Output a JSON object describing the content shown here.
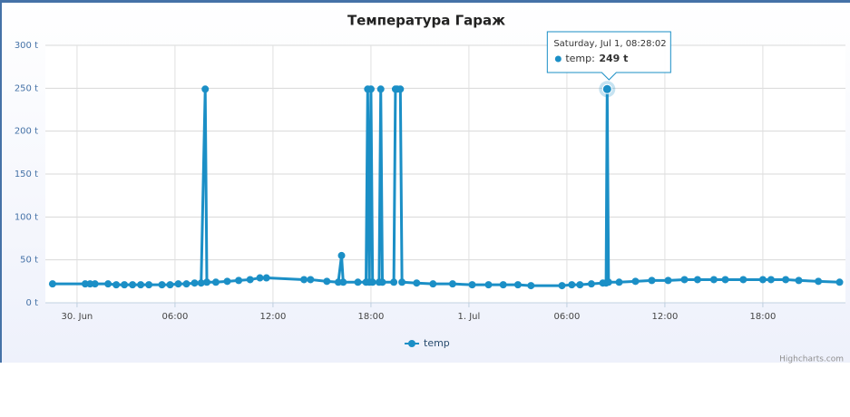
{
  "chart_data": {
    "type": "line",
    "title": "Температура Гараж",
    "x": [
      -1.5,
      0.5,
      0.8,
      1.1,
      1.9,
      2.4,
      2.9,
      3.4,
      3.9,
      4.4,
      5.2,
      5.7,
      6.2,
      6.7,
      7.2,
      7.6,
      7.85,
      7.95,
      8.5,
      9.2,
      9.9,
      10.6,
      11.2,
      11.6,
      13.9,
      14.3,
      15.3,
      16.0,
      16.2,
      16.3,
      17.2,
      17.7,
      17.8,
      17.9,
      18.0,
      18.1,
      18.5,
      18.6,
      18.7,
      19.4,
      19.5,
      19.6,
      19.8,
      19.9,
      20.8,
      21.8,
      23.0,
      24.2,
      25.2,
      26.1,
      27.0,
      27.8,
      29.7,
      30.3,
      30.8,
      31.5,
      32.2,
      32.4,
      32.467,
      32.55,
      33.2,
      34.2,
      35.2,
      36.2,
      37.2,
      38.0,
      39.0,
      39.7,
      40.8,
      42.0,
      42.5,
      43.4,
      44.2,
      45.4,
      46.7
    ],
    "series": [
      {
        "name": "temp",
        "color": "#1b8fc6",
        "values": [
          22,
          22,
          22,
          22,
          22,
          21,
          21,
          21,
          21,
          21,
          21,
          21,
          22,
          22,
          23,
          23,
          249,
          24,
          24,
          25,
          26,
          27,
          29,
          29,
          27,
          27,
          25,
          24,
          55,
          24,
          24,
          24,
          249,
          24,
          249,
          24,
          24,
          249,
          24,
          24,
          249,
          249,
          249,
          24,
          23,
          22,
          22,
          21,
          21,
          21,
          21,
          20,
          20,
          21,
          21,
          22,
          23,
          23,
          249,
          24,
          24,
          25,
          26,
          26,
          27,
          27,
          27,
          27,
          27,
          27,
          27,
          27,
          26,
          25,
          24
        ]
      }
    ],
    "xlim": [
      -1.94,
      47.06
    ],
    "xticks": [
      {
        "value": 0,
        "label": "30. Jun"
      },
      {
        "value": 6,
        "label": "06:00"
      },
      {
        "value": 12,
        "label": "12:00"
      },
      {
        "value": 18,
        "label": "18:00"
      },
      {
        "value": 24,
        "label": "1. Jul"
      },
      {
        "value": 30,
        "label": "06:00"
      },
      {
        "value": 36,
        "label": "12:00"
      },
      {
        "value": 42,
        "label": "18:00"
      }
    ],
    "ylim": [
      0,
      300
    ],
    "yticks": [
      {
        "value": 0,
        "label": "0 t"
      },
      {
        "value": 50,
        "label": "50 t"
      },
      {
        "value": 100,
        "label": "100 t"
      },
      {
        "value": 150,
        "label": "150 t"
      },
      {
        "value": 200,
        "label": "200 t"
      },
      {
        "value": 250,
        "label": "250 t"
      },
      {
        "value": 300,
        "label": "300 t"
      }
    ],
    "grid": true,
    "legend": "bottom",
    "tooltip": {
      "header": "Saturday, Jul 1, 08:28:02",
      "name": "temp:",
      "value": "249 t"
    },
    "credits": "Highcharts.com"
  }
}
